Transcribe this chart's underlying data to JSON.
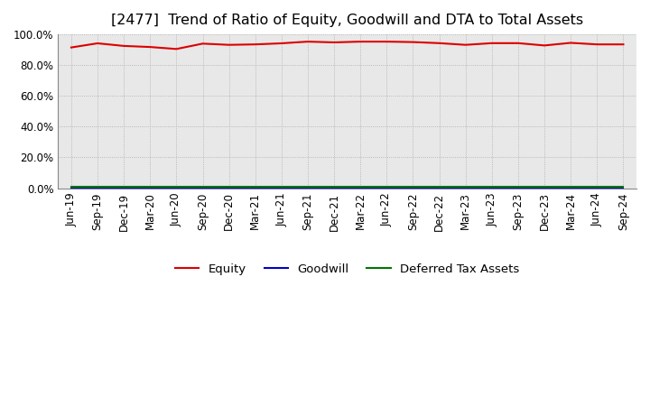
{
  "title": "[2477]  Trend of Ratio of Equity, Goodwill and DTA to Total Assets",
  "ylim": [
    0,
    100
  ],
  "yticks": [
    0,
    20,
    40,
    60,
    80,
    100
  ],
  "yticklabels": [
    "0.0%",
    "20.0%",
    "40.0%",
    "60.0%",
    "80.0%",
    "100.0%"
  ],
  "x_labels": [
    "Jun-19",
    "Sep-19",
    "Dec-19",
    "Mar-20",
    "Jun-20",
    "Sep-20",
    "Dec-20",
    "Mar-21",
    "Jun-21",
    "Sep-21",
    "Dec-21",
    "Mar-22",
    "Jun-22",
    "Sep-22",
    "Dec-22",
    "Mar-23",
    "Jun-23",
    "Sep-23",
    "Dec-23",
    "Mar-24",
    "Jun-24",
    "Sep-24"
  ],
  "equity": [
    91.5,
    94.2,
    92.5,
    91.8,
    90.5,
    94.0,
    93.2,
    93.5,
    94.2,
    95.3,
    94.8,
    95.3,
    95.3,
    95.0,
    94.3,
    93.2,
    94.3,
    94.3,
    92.8,
    94.5,
    93.5,
    93.5
  ],
  "goodwill": [
    0.0,
    0.0,
    0.0,
    0.0,
    0.0,
    0.0,
    0.0,
    0.0,
    0.0,
    0.0,
    0.0,
    0.0,
    0.0,
    0.0,
    0.0,
    0.0,
    0.0,
    0.0,
    0.0,
    0.0,
    0.0,
    0.0
  ],
  "dta": [
    0.8,
    0.8,
    0.8,
    0.8,
    0.8,
    0.8,
    0.8,
    0.8,
    0.8,
    0.8,
    0.8,
    0.8,
    0.8,
    0.8,
    0.8,
    0.8,
    0.8,
    0.8,
    0.8,
    0.8,
    0.8,
    0.8
  ],
  "equity_color": "#dd0000",
  "goodwill_color": "#0000cc",
  "dta_color": "#007700",
  "background_color": "#ffffff",
  "plot_bg_color": "#e8e8e8",
  "grid_color": "#aaaaaa",
  "title_fontsize": 11.5,
  "tick_fontsize": 8.5,
  "legend_fontsize": 9.5
}
